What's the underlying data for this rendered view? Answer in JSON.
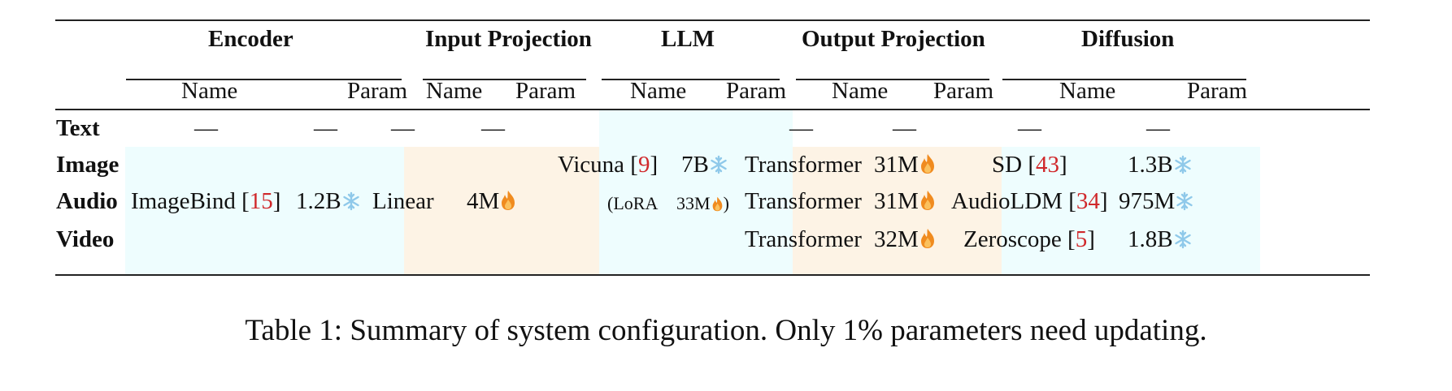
{
  "colors": {
    "frozen_bg": "#eefdfe",
    "trainable_bg": "#fdf3e5",
    "reference": "#d0282b",
    "snowflake": "#8fc9ea",
    "flame": "#f08b1f"
  },
  "groups": [
    "Encoder",
    "Input Projection",
    "LLM",
    "Output Projection",
    "Diffusion"
  ],
  "subheaders": {
    "name": "Name",
    "param": "Param"
  },
  "rows": [
    {
      "label": "Text",
      "enc_name": "—",
      "enc_param": "—",
      "inp_name": "—",
      "inp_param": "—",
      "out_name": "—",
      "out_param": "—",
      "diff_name": "—",
      "diff_param": "—"
    },
    {
      "label": "Image",
      "out_name": "Transformer",
      "out_param": "31M",
      "out_icon": "flame-icon",
      "diff_name": "SD",
      "diff_ref": "43",
      "diff_param": "1.3B",
      "diff_icon": "snowflake-icon"
    },
    {
      "label": "Audio",
      "out_name": "Transformer",
      "out_param": "31M",
      "out_icon": "flame-icon",
      "diff_name": "AudioLDM",
      "diff_ref": "34",
      "diff_param": "975M",
      "diff_icon": "snowflake-icon"
    },
    {
      "label": "Video",
      "out_name": "Transformer",
      "out_param": "32M",
      "out_icon": "flame-icon",
      "diff_name": "Zeroscope",
      "diff_ref": "5",
      "diff_param": "1.8B",
      "diff_icon": "snowflake-icon"
    }
  ],
  "encoder_merged": {
    "name": "ImageBind",
    "ref": "15",
    "param": "1.2B",
    "icon": "snowflake-icon"
  },
  "input_proj_merged": {
    "name": "Linear",
    "param": "4M",
    "icon": "flame-icon"
  },
  "llm_merged": {
    "name": "Vicuna",
    "ref": "9",
    "param": "7B",
    "icon": "snowflake-icon",
    "lora_label": "(LoRA",
    "lora_param": "33M",
    "lora_icon": "flame-icon",
    "lora_close": ")"
  },
  "caption": "Table 1: Summary of system configuration. Only 1% parameters need updating."
}
